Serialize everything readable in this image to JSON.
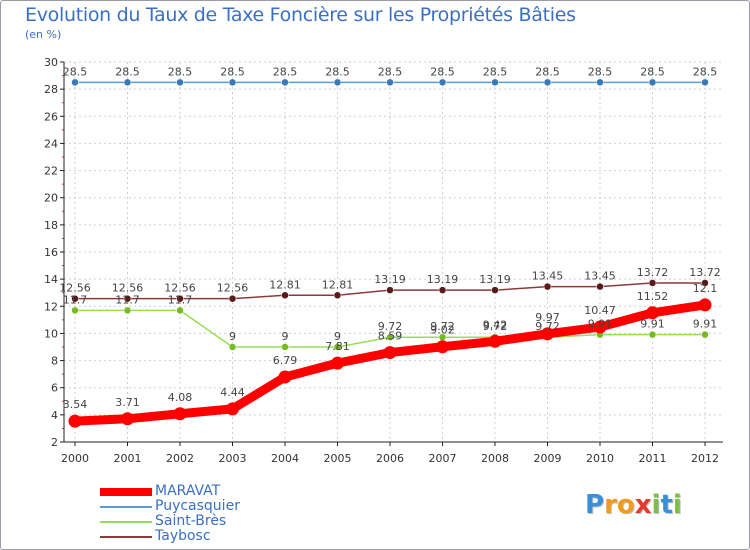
{
  "chart_data": {
    "type": "line",
    "title": "Evolution du Taux de Taxe Foncière sur les Propriétés Bâties",
    "unit_label": "(en %)",
    "xlabel": "",
    "ylabel": "",
    "categories": [
      "2000",
      "2001",
      "2002",
      "2003",
      "2004",
      "2005",
      "2006",
      "2007",
      "2008",
      "2009",
      "2010",
      "2011",
      "2012"
    ],
    "ylim": [
      2,
      30
    ],
    "yticks": [
      2,
      4,
      6,
      8,
      10,
      12,
      14,
      16,
      18,
      20,
      22,
      24,
      26,
      28,
      30
    ],
    "grid": true,
    "legend_position": "bottom-left",
    "series": [
      {
        "name": "Puycasquier",
        "color": "#5b9bd5",
        "marker": "#3a7ab8",
        "width": "thin",
        "values": [
          28.5,
          28.5,
          28.5,
          28.5,
          28.5,
          28.5,
          28.5,
          28.5,
          28.5,
          28.5,
          28.5,
          28.5,
          28.5
        ],
        "labels": [
          "28.5",
          "28.5",
          "28.5",
          "28.5",
          "28.5",
          "28.5",
          "28.5",
          "28.5",
          "28.5",
          "28.5",
          "28.5",
          "28.5",
          "28.5"
        ]
      },
      {
        "name": "Saint-Brès",
        "color": "#99dd55",
        "marker": "#77bb22",
        "width": "thin",
        "values": [
          11.7,
          11.7,
          11.7,
          9,
          9,
          9,
          9.72,
          9.72,
          9.72,
          9.72,
          9.91,
          9.91,
          9.91
        ],
        "labels": [
          "11.7",
          "11.7",
          "11.7",
          "9",
          "9",
          "9",
          "9.72",
          "9.72",
          "9.72",
          "9.72",
          "9.91",
          "9.91",
          "9.91"
        ]
      },
      {
        "name": "Taybosc",
        "color": "#8b3a3a",
        "marker": "#5a1a1a",
        "width": "thin",
        "values": [
          12.56,
          12.56,
          12.56,
          12.56,
          12.81,
          12.81,
          13.19,
          13.19,
          13.19,
          13.45,
          13.45,
          13.72,
          13.72
        ],
        "labels": [
          "12.56",
          "12.56",
          "12.56",
          "12.56",
          "12.81",
          "12.81",
          "13.19",
          "13.19",
          "13.19",
          "13.45",
          "13.45",
          "13.72",
          "13.72"
        ]
      },
      {
        "name": "MARAVAT",
        "color": "#ff0000",
        "marker": "#ff0000",
        "width": "thick",
        "values": [
          3.54,
          3.71,
          4.08,
          4.44,
          6.79,
          7.81,
          8.59,
          9.02,
          9.42,
          9.97,
          10.47,
          11.52,
          12.1
        ],
        "labels": [
          "3.54",
          "3.71",
          "4.08",
          "4.44",
          "6.79",
          "7.81",
          "8.59",
          "9.02",
          "9.42",
          "9.97",
          "10.47",
          "11.52",
          "12.1"
        ]
      }
    ],
    "legend_order": [
      "MARAVAT",
      "Puycasquier",
      "Saint-Brès",
      "Taybosc"
    ]
  },
  "logo": {
    "text": "Proxiti",
    "letters": [
      {
        "ch": "P",
        "color": "#3a8fd8"
      },
      {
        "ch": "r",
        "color": "#f29a1f"
      },
      {
        "ch": "o",
        "color": "#f29a1f"
      },
      {
        "ch": "x",
        "color": "#e23b2e"
      },
      {
        "ch": "i",
        "color": "#7bc043"
      },
      {
        "ch": "t",
        "color": "#3a8fd8"
      },
      {
        "ch": "i",
        "color": "#7bc043"
      }
    ]
  }
}
